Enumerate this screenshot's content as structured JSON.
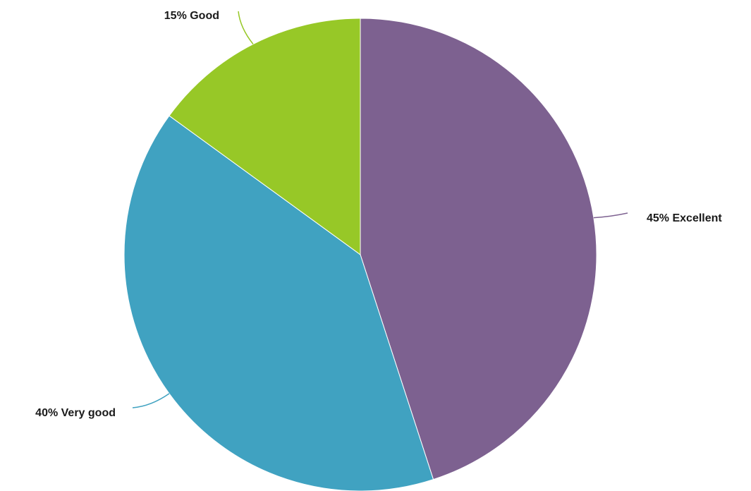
{
  "chart_data": {
    "type": "pie",
    "title": "",
    "slices": [
      {
        "label": "Excellent",
        "value": 45,
        "display": "45% Excellent",
        "color": "#7d6190"
      },
      {
        "label": "Very good",
        "value": 40,
        "display": "40% Very good",
        "color": "#40a2c1"
      },
      {
        "label": "Good",
        "value": 15,
        "display": "15% Good",
        "color": "#97c827"
      }
    ],
    "start_angle": "12 o'clock",
    "direction": "clockwise",
    "legend": "none",
    "data_labels": "outside with leader lines"
  }
}
